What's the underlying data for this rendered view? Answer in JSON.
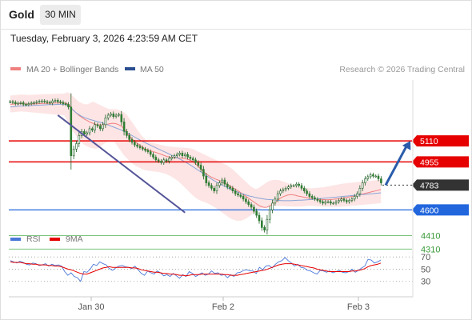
{
  "header": {
    "title": "Gold",
    "timeframe": "30 MIN",
    "datetime": "Tuesday, February 3, 2026 4:23:59 AM CET"
  },
  "legend": {
    "ma20_label": "MA 20 + Bollinger Bands",
    "ma50_label": "MA 50",
    "copyright": "Research © 2026 Trading Central",
    "rsi_label": "RSI",
    "rsi_ma_label": "9MA"
  },
  "colors": {
    "ma20": "#f08080",
    "bollinger_fill": "#fde2e2",
    "ma50": "#8aa4d6",
    "up_candle": "#ffffff",
    "down_candle": "#2e7d32",
    "resistance": "#e60000",
    "pivot": "#2266dd",
    "support": "#7cc47c",
    "last_price": "#333333",
    "trendline": "#555599",
    "arrow": "#2a5caa",
    "rsi": "#4a78d8",
    "rsi_ma": "#e60000"
  },
  "chart_data": [
    {
      "type": "candlestick",
      "title": "Gold 30 MIN",
      "x_ticks": [
        "Jan 30",
        "Feb 2",
        "Feb 3"
      ],
      "ylim": [
        4200,
        5560
      ],
      "levels": [
        {
          "value": 5110,
          "label": "5110",
          "kind": "resistance"
        },
        {
          "value": 4955,
          "label": "4955",
          "kind": "resistance"
        },
        {
          "value": 4783,
          "label": "4783",
          "kind": "last"
        },
        {
          "value": 4600,
          "label": "4600",
          "kind": "pivot"
        },
        {
          "value": 4410,
          "label": "4410",
          "kind": "support"
        },
        {
          "value": 4310,
          "label": "4310",
          "kind": "support"
        }
      ],
      "close": [
        5400,
        5395,
        5385,
        5388,
        5392,
        5380,
        5378,
        5385,
        5390,
        5393,
        5398,
        5402,
        5405,
        5400,
        5395,
        5390,
        5405,
        5410,
        5400,
        5395,
        5385,
        5380,
        5360,
        5000,
        5050,
        5090,
        5150,
        5180,
        5160,
        5170,
        5200,
        5190,
        5230,
        5220,
        5200,
        5230,
        5280,
        5300,
        5310,
        5290,
        5300,
        5305,
        5250,
        5180,
        5150,
        5120,
        5100,
        5080,
        5070,
        5060,
        5050,
        5040,
        5030,
        5010,
        4990,
        4970,
        4960,
        4950,
        4970,
        4960,
        4980,
        4990,
        5000,
        5010,
        5020,
        5000,
        5010,
        4990,
        4980,
        4970,
        4950,
        4930,
        4900,
        4850,
        4800,
        4780,
        4760,
        4740,
        4780,
        4800,
        4820,
        4790,
        4770,
        4760,
        4740,
        4720,
        4710,
        4700,
        4680,
        4660,
        4640,
        4620,
        4590,
        4560,
        4520,
        4470,
        4450,
        4530,
        4600,
        4650,
        4680,
        4720,
        4740,
        4750,
        4760,
        4770,
        4780,
        4780,
        4790,
        4780,
        4760,
        4740,
        4720,
        4700,
        4690,
        4680,
        4670,
        4660,
        4650,
        4660,
        4660,
        4650,
        4650,
        4660,
        4670,
        4680,
        4670,
        4660,
        4670,
        4680,
        4700,
        4720,
        4760,
        4800,
        4830,
        4845,
        4860,
        4850,
        4850,
        4830,
        4800
      ],
      "ma20": [
        5380,
        5382,
        5384,
        5385,
        5386,
        5384,
        5382,
        5382,
        5383,
        5384,
        5385,
        5386,
        5387,
        5388,
        5388,
        5389,
        5390,
        5391,
        5391,
        5390,
        5385,
        5368,
        5338,
        5320,
        5300,
        5285,
        5270,
        5260,
        5248,
        5240,
        5232,
        5228,
        5228,
        5230,
        5232,
        5238,
        5240,
        5238,
        5230,
        5218,
        5198,
        5170,
        5140,
        5118,
        5100,
        5085,
        5070,
        5055,
        5045,
        5038,
        5032,
        5025,
        5018,
        5010,
        5002,
        4995,
        4990,
        4987,
        4985,
        4984,
        4983,
        4980,
        4975,
        4968,
        4956,
        4940,
        4920,
        4898,
        4878,
        4862,
        4848,
        4838,
        4828,
        4820,
        4810,
        4800,
        4790,
        4778,
        4765,
        4752,
        4740,
        4725,
        4710,
        4695,
        4680,
        4665,
        4650,
        4635,
        4625,
        4618,
        4620,
        4630,
        4645,
        4660,
        4675,
        4690,
        4700,
        4708,
        4712,
        4712,
        4708,
        4702,
        4698,
        4694,
        4690,
        4686,
        4682,
        4680,
        4678,
        4677,
        4676,
        4675,
        4676,
        4678,
        4680,
        4682,
        4685,
        4688,
        4692,
        4696,
        4700,
        4705,
        4710,
        4715,
        4720,
        4725,
        4730,
        4735,
        4740,
        4745,
        4750
      ],
      "bb_upper": [
        5445,
        5447,
        5449,
        5451,
        5453,
        5452,
        5450,
        5450,
        5451,
        5452,
        5453,
        5454,
        5455,
        5456,
        5456,
        5457,
        5458,
        5459,
        5459,
        5460,
        5470,
        5460,
        5440,
        5420,
        5400,
        5390,
        5380,
        5380,
        5390,
        5400,
        5390,
        5380,
        5370,
        5360,
        5350,
        5345,
        5345,
        5345,
        5340,
        5330,
        5320,
        5300,
        5270,
        5240,
        5210,
        5180,
        5150,
        5130,
        5110,
        5100,
        5095,
        5090,
        5085,
        5080,
        5075,
        5070,
        5068,
        5066,
        5064,
        5062,
        5060,
        5060,
        5058,
        5055,
        5050,
        5040,
        5030,
        5020,
        5010,
        5000,
        4990,
        4980,
        4970,
        4960,
        4950,
        4940,
        4930,
        4915,
        4900,
        4880,
        4860,
        4840,
        4820,
        4800,
        4780,
        4765,
        4755,
        4760,
        4775,
        4790,
        4805,
        4815,
        4820,
        4822,
        4820,
        4815,
        4808,
        4800,
        4792,
        4786,
        4780,
        4775,
        4770,
        4766,
        4762,
        4760,
        4760,
        4762,
        4764,
        4766,
        4768,
        4772,
        4776,
        4780,
        4784,
        4788,
        4792,
        4795,
        4798,
        4800,
        4802,
        4804,
        4806,
        4808,
        4810,
        4812,
        4814,
        4816,
        4818,
        4820,
        4822
      ],
      "bb_lower": [
        5320,
        5322,
        5324,
        5326,
        5328,
        5326,
        5324,
        5322,
        5320,
        5318,
        5316,
        5314,
        5312,
        5310,
        5308,
        5306,
        5304,
        5302,
        5300,
        5298,
        5260,
        5220,
        5180,
        5150,
        5120,
        5100,
        5080,
        5070,
        5060,
        5055,
        5050,
        5060,
        5075,
        5090,
        5100,
        5110,
        5110,
        5090,
        5060,
        5030,
        5000,
        4980,
        4960,
        4940,
        4925,
        4915,
        4905,
        4895,
        4890,
        4888,
        4885,
        4882,
        4880,
        4876,
        4870,
        4862,
        4852,
        4840,
        4826,
        4810,
        4790,
        4770,
        4748,
        4728,
        4708,
        4690,
        4676,
        4666,
        4658,
        4650,
        4640,
        4628,
        4615,
        4600,
        4585,
        4570,
        4555,
        4540,
        4530,
        4522,
        4518,
        4520,
        4528,
        4540,
        4555,
        4570,
        4585,
        4600,
        4612,
        4620,
        4625,
        4628,
        4630,
        4630,
        4629,
        4628,
        4627,
        4626,
        4625,
        4624,
        4624,
        4624,
        4625,
        4626,
        4628,
        4630,
        4630,
        4628,
        4626,
        4625,
        4624,
        4623,
        4622,
        4622,
        4622,
        4623,
        4624,
        4625,
        4626,
        4628,
        4630,
        4632,
        4634,
        4636,
        4638,
        4640,
        4642,
        4644,
        4646,
        4648,
        4650
      ],
      "ma50": [
        5360,
        5362,
        5364,
        5366,
        5368,
        5369,
        5370,
        5371,
        5372,
        5373,
        5374,
        5375,
        5376,
        5377,
        5378,
        5378,
        5379,
        5380,
        5380,
        5380,
        5375,
        5360,
        5340,
        5320,
        5305,
        5292,
        5282,
        5275,
        5268,
        5262,
        5256,
        5250,
        5244,
        5238,
        5230,
        5222,
        5214,
        5206,
        5198,
        5190,
        5180,
        5170,
        5158,
        5146,
        5134,
        5122,
        5110,
        5100,
        5090,
        5080,
        5070,
        5060,
        5050,
        5040,
        5030,
        5020,
        5010,
        5000,
        4990,
        4980,
        4970,
        4958,
        4946,
        4934,
        4920,
        4906,
        4892,
        4878,
        4864,
        4850,
        4836,
        4822,
        4810,
        4798,
        4786,
        4776,
        4766,
        4756,
        4746,
        4738,
        4730,
        4722,
        4715,
        4708,
        4702,
        4697,
        4692,
        4688,
        4684,
        4681,
        4678,
        4676,
        4674,
        4672,
        4670,
        4669,
        4668,
        4668,
        4668,
        4669,
        4670,
        4671,
        4672,
        4673,
        4674,
        4676,
        4678,
        4680,
        4682,
        4684,
        4686,
        4688,
        4690,
        4692,
        4694,
        4696,
        4698,
        4700,
        4702,
        4704,
        4706,
        4708,
        4710,
        4712,
        4714,
        4716,
        4718,
        4720,
        4722,
        4724,
        4726
      ],
      "trendline": [
        [
          18,
          5300
        ],
        [
          66,
          4580
        ]
      ],
      "projection_arrow": {
        "from": 4783,
        "to": 5110
      }
    },
    {
      "type": "line",
      "title": "RSI",
      "yticks": [
        70,
        50,
        30
      ],
      "ylim": [
        10,
        82
      ],
      "series": [
        {
          "name": "RSI",
          "values": [
            64,
            62,
            60,
            63,
            61,
            58,
            57,
            60,
            59,
            56,
            57,
            59,
            55,
            58,
            56,
            57,
            55,
            46,
            40,
            44,
            38,
            36,
            30,
            46,
            45,
            50,
            58,
            56,
            62,
            59,
            57,
            51,
            48,
            52,
            55,
            56,
            54,
            53,
            51,
            55,
            49,
            43,
            40,
            47,
            44,
            42,
            47,
            44,
            39,
            41,
            38,
            43,
            39,
            35,
            41,
            38,
            46,
            43,
            38,
            41,
            44,
            40,
            42,
            47,
            43,
            44,
            40,
            41,
            36,
            41,
            38,
            44,
            45,
            48,
            49,
            47,
            47,
            43,
            53,
            49,
            55,
            56,
            52,
            58,
            62,
            64,
            69,
            64,
            60,
            55,
            58,
            53,
            52,
            48,
            47,
            44,
            42,
            48,
            47,
            45,
            47,
            44,
            46,
            48,
            45,
            44,
            46,
            50,
            45,
            48,
            52,
            55,
            66,
            65,
            60,
            62,
            65
          ]
        },
        {
          "name": "9MA",
          "values": [
            62,
            61,
            61,
            61,
            60,
            59,
            59,
            58,
            58,
            57,
            57,
            57,
            56,
            56,
            55,
            55,
            54,
            52,
            50,
            49,
            47,
            45,
            43,
            42,
            42,
            44,
            46,
            48,
            50,
            52,
            53,
            54,
            53,
            53,
            53,
            53,
            53,
            53,
            52,
            52,
            51,
            49,
            48,
            47,
            46,
            45,
            45,
            44,
            43,
            43,
            42,
            42,
            41,
            40,
            40,
            39,
            40,
            41,
            41,
            41,
            42,
            42,
            42,
            42,
            42,
            42,
            42,
            41,
            41,
            40,
            40,
            40,
            41,
            42,
            43,
            44,
            45,
            46,
            47,
            48,
            49,
            51,
            53,
            55,
            57,
            58,
            59,
            59,
            59,
            58,
            57,
            56,
            55,
            54,
            53,
            52,
            50,
            49,
            48,
            47,
            46,
            46,
            46,
            46,
            46,
            46,
            46,
            47,
            47,
            48,
            49,
            51,
            54,
            56,
            57,
            58,
            60
          ]
        }
      ]
    }
  ]
}
